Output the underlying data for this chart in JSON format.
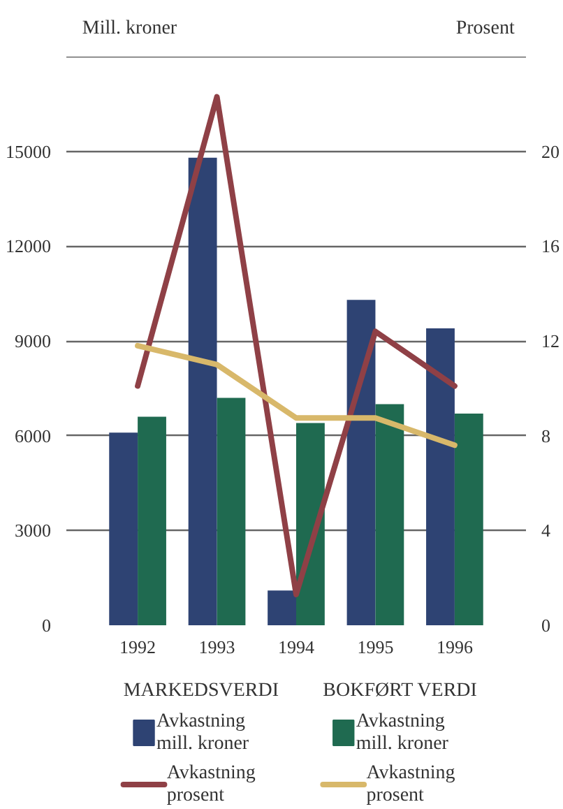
{
  "chart_data": {
    "type": "bar",
    "ylabel": "Mill. kroner",
    "y2label": "Prosent",
    "categories": [
      "1992",
      "1993",
      "1994",
      "1995",
      "1996"
    ],
    "ylim": [
      0,
      18000
    ],
    "yticks": [
      0,
      3000,
      6000,
      9000,
      12000,
      15000,
      {
        "value": 18000,
        "label": null
      }
    ],
    "y2lim": [
      0,
      24
    ],
    "y2ticks": [
      0,
      4,
      8,
      12,
      16,
      20,
      {
        "value": 24,
        "label": null
      }
    ],
    "grid": "y",
    "legend": "bottom",
    "annotations": [
      "MARKEDSVERDI",
      "BOKFØRT VERDI"
    ],
    "series": [
      {
        "name": "Avkastning mill. kroner",
        "color": "#2e4373",
        "values": [
          6100,
          14800,
          1100,
          10300,
          9400
        ]
      },
      {
        "name": "Avkastning mill. kroner",
        "color": "#1f6a50",
        "values": [
          6600,
          7200,
          6400,
          7000,
          6700
        ]
      },
      {
        "name": "Avkastning prosent",
        "type": "line",
        "axis": "y2",
        "color": "#8f4046",
        "values": [
          10.1,
          22.3,
          1.3,
          12.4,
          10.1
        ]
      },
      {
        "name": "Avkastning prosent",
        "type": "line",
        "axis": "y2",
        "color": "#d8b86a",
        "values": [
          11.8,
          11.0,
          8.75,
          8.75,
          7.6
        ]
      }
    ]
  }
}
